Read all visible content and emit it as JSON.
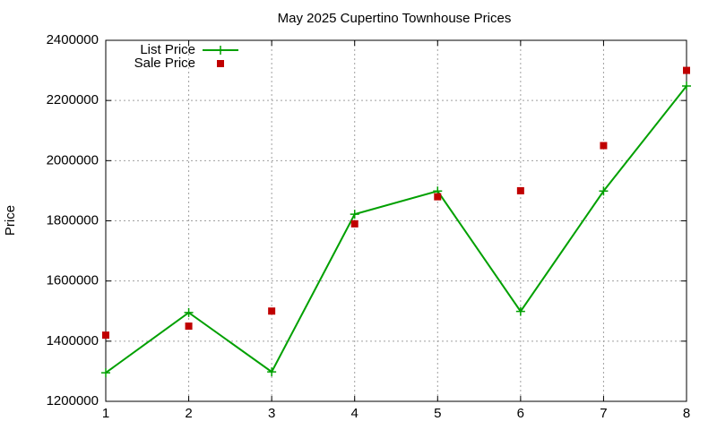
{
  "chart_data": {
    "type": "line",
    "title": "May 2025 Cupertino Townhouse Prices",
    "y_label": "Price",
    "x": [
      1,
      2,
      3,
      4,
      5,
      6,
      7,
      8
    ],
    "series": [
      {
        "name": "List Price",
        "color": "#00a000",
        "style": "linespoints",
        "values": [
          1295000,
          1495000,
          1298000,
          1822000,
          1899000,
          1499000,
          1899000,
          2248000
        ]
      },
      {
        "name": "Sale Price",
        "color": "#c00000",
        "style": "points",
        "values": [
          1420000,
          1450000,
          1500000,
          1790000,
          1880000,
          1900000,
          2050000,
          2300000
        ]
      }
    ],
    "xlim": [
      1,
      8
    ],
    "xticks": [
      1,
      2,
      3,
      4,
      5,
      6,
      7,
      8
    ],
    "ylim": [
      1200000,
      2400000
    ],
    "yticks": [
      1200000,
      1400000,
      1600000,
      1800000,
      2000000,
      2200000,
      2400000
    ],
    "grid": true,
    "legend": "top-left"
  }
}
